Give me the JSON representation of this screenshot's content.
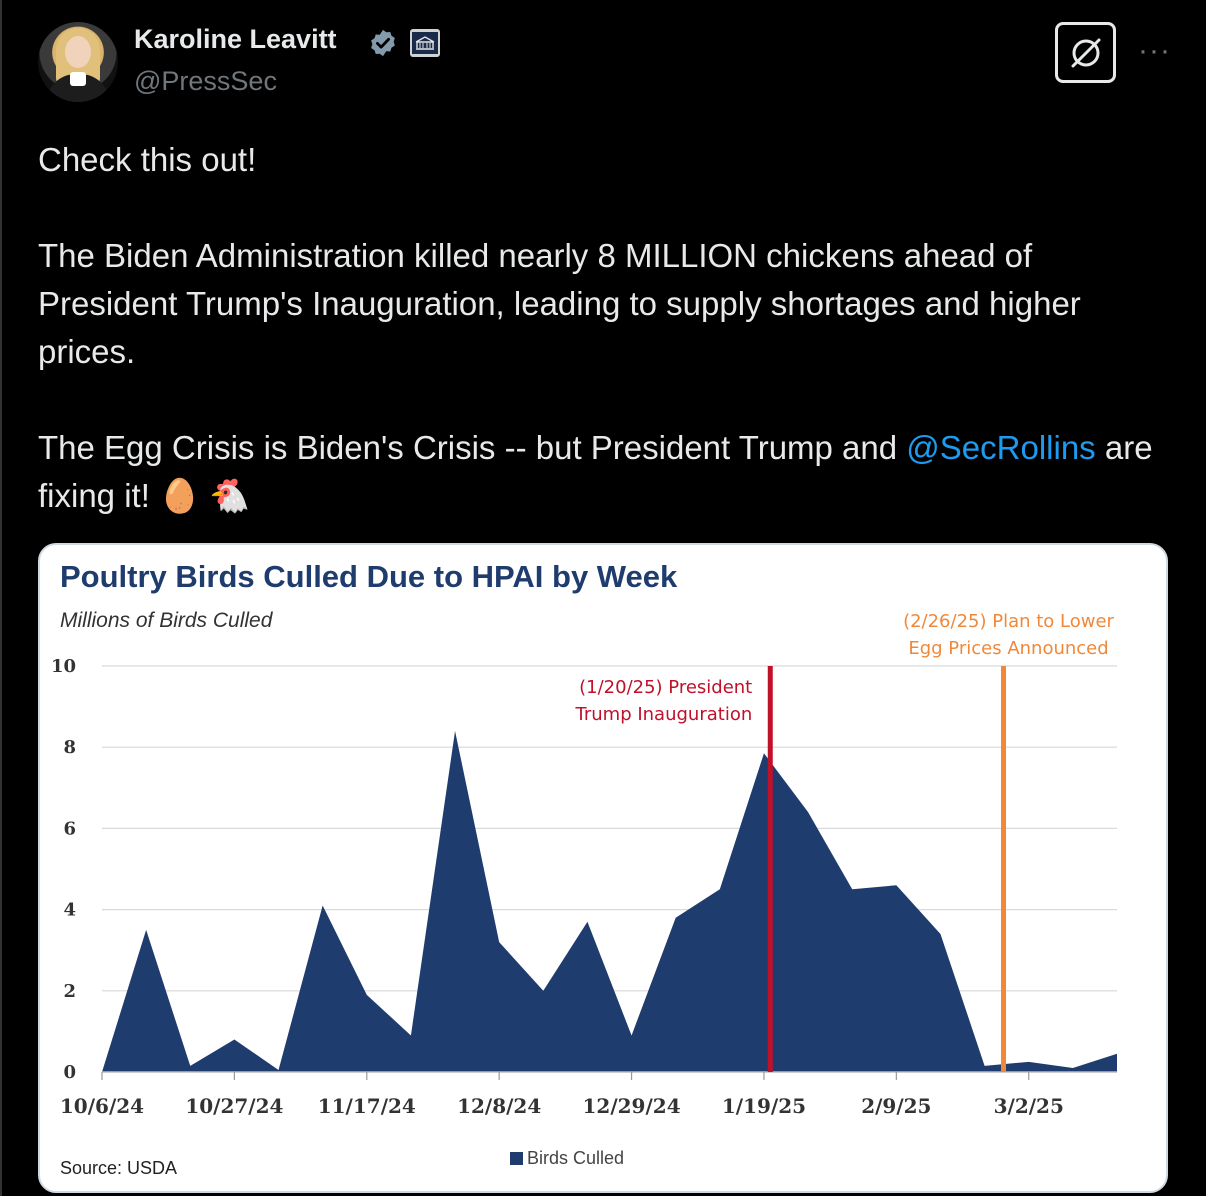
{
  "header": {
    "display_name": "Karoline Leavitt",
    "handle": "@PressSec"
  },
  "tweet": {
    "line1": "Check this out!",
    "para2": "The Biden Administration killed nearly 8 MILLION chickens ahead of President Trump's Inauguration, leading to supply shortages and higher prices.",
    "para3_before": "The Egg Crisis is Biden's Crisis -- but President Trump and ",
    "mention": "@SecRollins",
    "para3_after": " are fixing it! 🥚 🐔"
  },
  "colors": {
    "area": "#1f3c6e",
    "inauguration_line": "#c0102a",
    "plan_line": "#f0883a",
    "mention": "#1d9bf0"
  },
  "chart_data": {
    "type": "area",
    "title": "Poultry Birds Culled Due to HPAI by Week",
    "ylabel": "Millions of Birds Culled",
    "source": "Source: USDA",
    "legend": [
      "Birds Culled"
    ],
    "ylim": [
      0,
      10
    ],
    "yticks": [
      0,
      2,
      4,
      6,
      8,
      10
    ],
    "xtick_labels": [
      "10/6/24",
      "10/27/24",
      "11/17/24",
      "12/8/24",
      "12/29/24",
      "1/19/25",
      "2/9/25",
      "3/2/25"
    ],
    "x": [
      "10/6/24",
      "10/13/24",
      "10/20/24",
      "10/27/24",
      "11/3/24",
      "11/10/24",
      "11/17/24",
      "11/24/24",
      "12/1/24",
      "12/8/24",
      "12/15/24",
      "12/22/24",
      "12/29/24",
      "1/5/25",
      "1/12/25",
      "1/19/25",
      "1/26/25",
      "2/2/25",
      "2/9/25",
      "2/16/25",
      "2/23/25",
      "3/2/25",
      "3/9/25",
      "3/16/25"
    ],
    "series": [
      {
        "name": "Birds Culled",
        "values": [
          0,
          3.5,
          0.15,
          0.8,
          0.05,
          4.1,
          1.9,
          0.9,
          8.4,
          3.2,
          2.0,
          3.7,
          0.9,
          3.8,
          4.5,
          7.85,
          6.4,
          4.5,
          4.6,
          3.4,
          0.15,
          0.25,
          0.1,
          0.45
        ]
      }
    ],
    "annotations": [
      {
        "x": "1/20/25",
        "label_line1": "(1/20/25)  President",
        "label_line2": "Trump Inauguration",
        "color": "#c0102a"
      },
      {
        "x": "2/26/25",
        "label_line1": "(2/26/25)  Plan to Lower",
        "label_line2": "Egg Prices Announced",
        "color": "#f0883a"
      }
    ],
    "grid": true
  }
}
